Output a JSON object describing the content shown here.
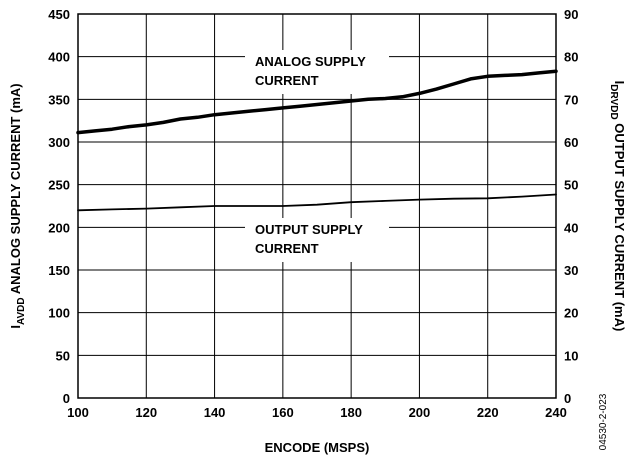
{
  "chart_data": {
    "type": "line",
    "xlabel": "ENCODE (MSPS)",
    "ylabel_left": {
      "prefix": "I",
      "sub": "AVDD",
      "suffix": " ANALOG SUPPLY CURRENT (mA)"
    },
    "ylabel_right": {
      "prefix": "I",
      "sub": "DRVDD",
      "suffix": " OUTPUT SUPPLY CURRENT (mA)"
    },
    "xlim": [
      100,
      240
    ],
    "ylim_left": [
      0,
      450
    ],
    "ylim_right": [
      0,
      90
    ],
    "x_ticks": [
      100,
      120,
      140,
      160,
      180,
      200,
      220,
      240
    ],
    "y_ticks_left": [
      0,
      50,
      100,
      150,
      200,
      250,
      300,
      350,
      400,
      450
    ],
    "y_ticks_right": [
      0,
      10,
      20,
      30,
      40,
      50,
      60,
      70,
      80,
      90
    ],
    "grid": true,
    "series": [
      {
        "name": "ANALOG SUPPLY CURRENT",
        "axis": "left",
        "stroke_width": "thick",
        "x": [
          100,
          105,
          110,
          115,
          120,
          125,
          130,
          135,
          140,
          145,
          150,
          155,
          160,
          165,
          170,
          175,
          180,
          185,
          190,
          195,
          200,
          205,
          210,
          215,
          220,
          225,
          230,
          235,
          240
        ],
        "y": [
          311,
          313,
          315,
          318,
          320,
          323,
          327,
          329,
          332,
          334,
          336,
          338,
          340,
          342,
          344,
          346,
          348,
          350,
          351,
          353,
          357,
          362,
          368,
          374,
          377,
          378,
          379,
          381,
          383
        ]
      },
      {
        "name": "OUTPUT SUPPLY CURRENT",
        "axis": "right",
        "stroke_width": "thin",
        "x": [
          100,
          110,
          120,
          130,
          140,
          150,
          160,
          170,
          180,
          190,
          200,
          210,
          220,
          230,
          240
        ],
        "y": [
          44.0,
          44.2,
          44.4,
          44.7,
          45.0,
          45.0,
          45.0,
          45.3,
          45.9,
          46.2,
          46.5,
          46.7,
          46.8,
          47.2,
          47.7
        ]
      }
    ],
    "annotations": [
      {
        "series": 0,
        "lines": [
          "ANALOG SUPPLY",
          "CURRENT"
        ]
      },
      {
        "series": 1,
        "lines": [
          "OUTPUT SUPPLY",
          "CURRENT"
        ]
      }
    ],
    "figure_id": "04530-2-023"
  }
}
